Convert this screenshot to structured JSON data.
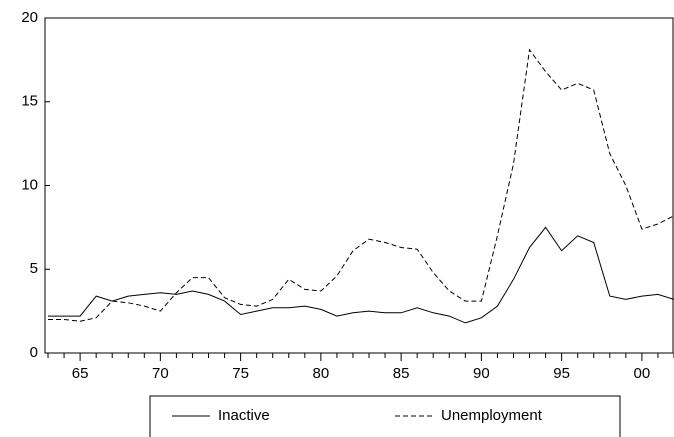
{
  "chart_data": {
    "type": "line",
    "categories": [
      null,
      null,
      "65",
      null,
      null,
      null,
      null,
      "70",
      null,
      null,
      null,
      null,
      "75",
      null,
      null,
      null,
      null,
      "80",
      null,
      null,
      null,
      null,
      "85",
      null,
      null,
      null,
      null,
      "90",
      null,
      null,
      null,
      null,
      "95",
      null,
      null,
      null,
      null,
      "00",
      null,
      null
    ],
    "series": [
      {
        "name": "Inactive",
        "color": "#000000",
        "line_style": "solid",
        "values": [
          2.2,
          2.2,
          2.2,
          3.4,
          3.1,
          3.4,
          3.5,
          3.6,
          3.5,
          3.7,
          3.5,
          3.1,
          2.3,
          2.5,
          2.7,
          2.7,
          2.8,
          2.6,
          2.2,
          2.4,
          2.5,
          2.4,
          2.4,
          2.7,
          2.4,
          2.2,
          1.8,
          2.1,
          2.8,
          4.4,
          6.3,
          7.5,
          6.1,
          7.0,
          6.6,
          3.4,
          3.2,
          3.4,
          3.5,
          3.2
        ]
      },
      {
        "name": "Unemployment",
        "color": "#000000",
        "line_style": "dashed",
        "values": [
          2.0,
          2.0,
          1.9,
          2.1,
          3.1,
          3.0,
          2.8,
          2.5,
          3.6,
          4.5,
          4.5,
          3.3,
          2.9,
          2.8,
          3.2,
          4.4,
          3.8,
          3.7,
          4.6,
          6.1,
          6.8,
          6.6,
          6.3,
          6.2,
          4.8,
          3.7,
          3.1,
          3.1,
          7.0,
          11.3,
          18.1,
          16.8,
          15.7,
          16.1,
          15.7,
          11.9,
          10.0,
          7.4,
          7.7,
          8.2
        ]
      }
    ],
    "ylim": [
      0,
      20
    ],
    "yticks": [
      0,
      5,
      10,
      15,
      20
    ],
    "legend": "bottom"
  }
}
